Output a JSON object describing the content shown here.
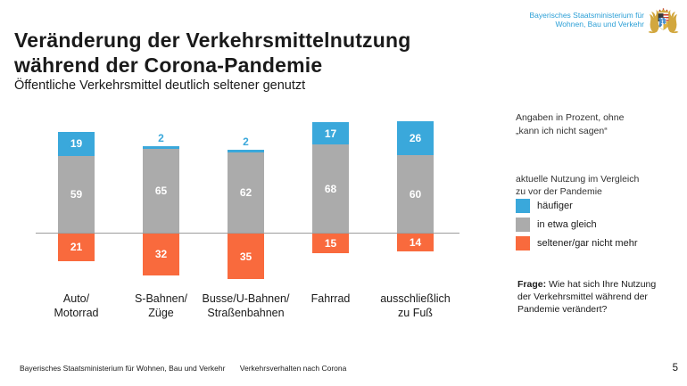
{
  "header": {
    "ministry_name": "Bayerisches Staatsministerium für\nWohnen, Bau und Verkehr",
    "logo_icon": "bavaria-coat-of-arms"
  },
  "title": {
    "main": "Veränderung der Verkehrsmittelnutzung\nwährend der Corona-Pandemie",
    "subtitle": "Öffentliche Verkehrsmittel deutlich seltener genutzt"
  },
  "chart_data": {
    "type": "bar",
    "variant": "diverging-stacked-percent",
    "categories": [
      "Auto/\nMotorrad",
      "S-Bahnen/\nZüge",
      "Busse/U-Bahnen/\nStraßenbahnen",
      "Fahrrad",
      "ausschließlich\nzu Fuß"
    ],
    "series": [
      {
        "name": "häufiger",
        "color": "#3aa8db",
        "values": [
          19,
          2,
          2,
          17,
          26
        ]
      },
      {
        "name": "in etwa gleich",
        "color": "#ababab",
        "values": [
          59,
          65,
          62,
          68,
          60
        ]
      },
      {
        "name": "seltener/gar nicht mehr",
        "color": "#f96a3d",
        "values": [
          21,
          32,
          35,
          15,
          14
        ]
      }
    ],
    "unit": "percent",
    "baseline_note": "zero line between 'in etwa gleich' (above) and 'seltener/gar nicht mehr' (below)",
    "legend_position": "right",
    "grid": false
  },
  "notes": {
    "percent_note": "Angaben in Prozent, ohne\n„kann ich nicht sagen“",
    "legend_title": "aktuelle Nutzung im Vergleich\nzu vor der Pandemie",
    "question_label": "Frage:",
    "question_text": " Wie hat sich Ihre Nutzung der Verkehrsmittel während der Pandemie verändert?"
  },
  "footer": {
    "ministry": "Bayerisches Staatsministerium für Wohnen, Bau und Verkehr",
    "document": "Verkehrsverhalten nach Corona",
    "page_number": "5"
  },
  "colors": {
    "accent_blue": "#3aa8db",
    "neutral_gray": "#ababab",
    "accent_orange": "#f96a3d",
    "ministry_blue": "#2b9fd6"
  }
}
